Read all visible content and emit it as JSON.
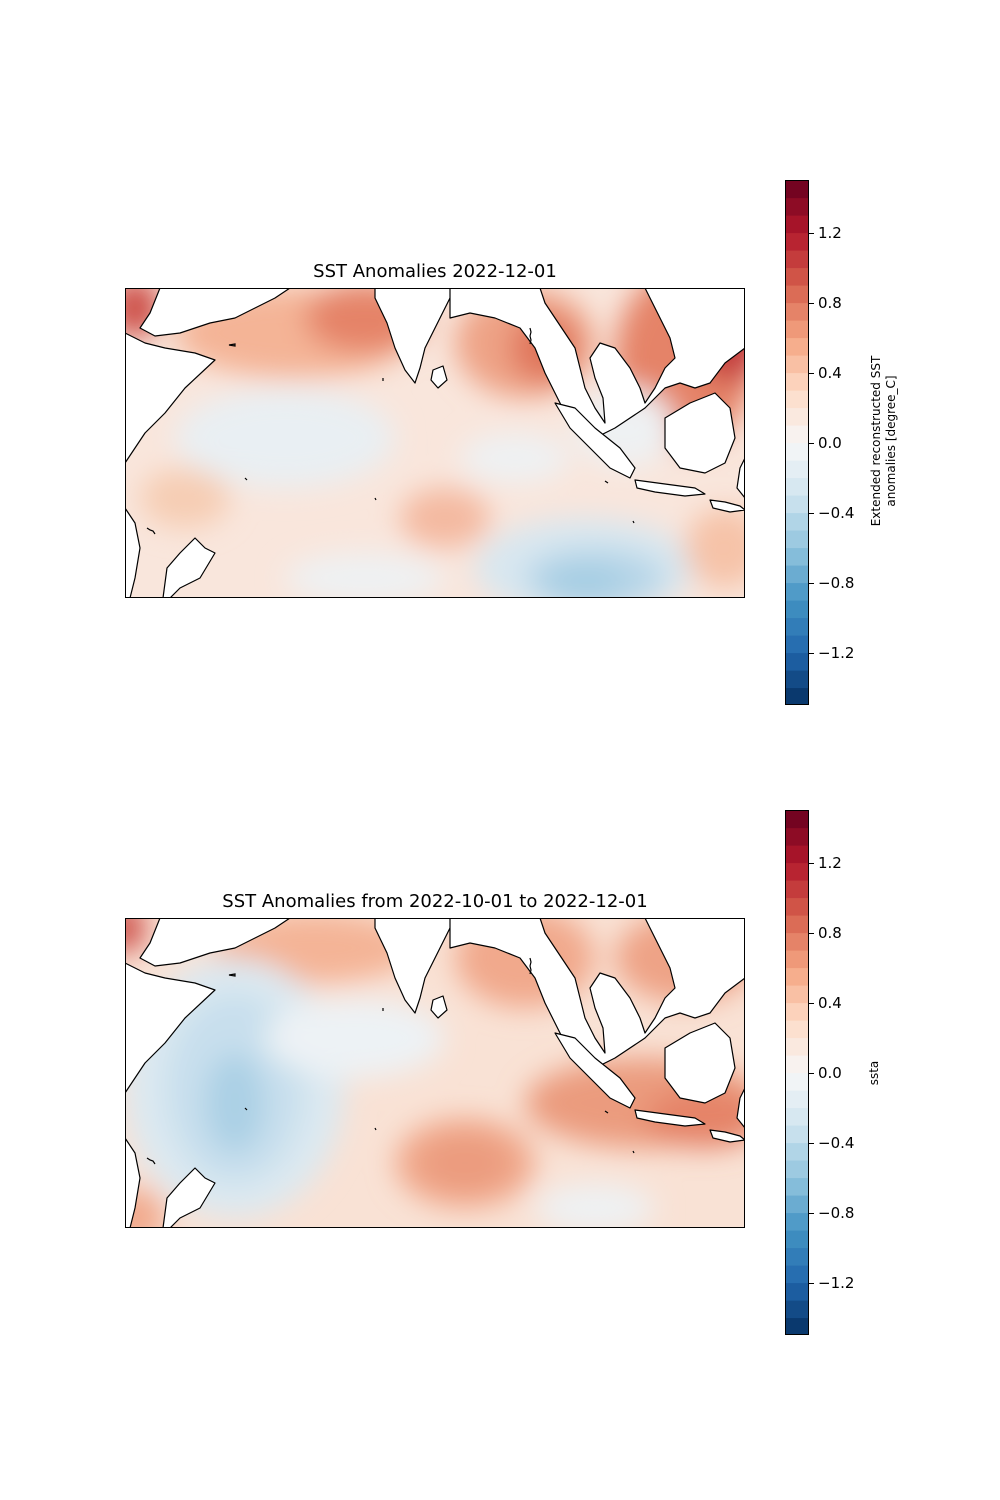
{
  "panels": [
    {
      "title": "SST Anomalies 2022-12-01",
      "colorbar_label_line1": "Extended reconstructed SST",
      "colorbar_label_line2": "anomalies [degree_C]"
    },
    {
      "title": "SST Anomalies from 2022-10-01 to 2022-12-01",
      "colorbar_label_line1": "ssta",
      "colorbar_label_line2": ""
    }
  ],
  "colorbar_ticks": [
    "1.2",
    "0.8",
    "0.4",
    "0.0",
    "−0.4",
    "−0.8",
    "−1.2"
  ],
  "colorbar_range": [
    -1.5,
    1.5
  ],
  "colormap": "RdBu_r",
  "colors": {
    "land": "#ffffff",
    "coastline": "#000000",
    "max_red": "#67001f",
    "max_blue": "#053061",
    "neutral": "#f7f7f7"
  }
}
